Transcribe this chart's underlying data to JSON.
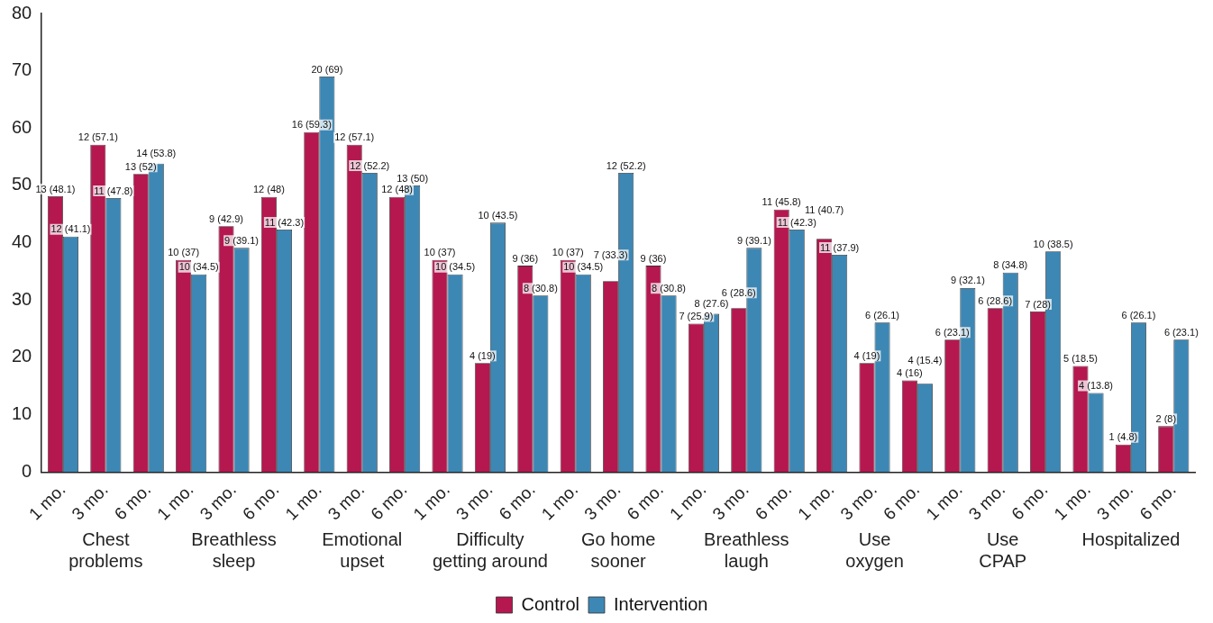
{
  "chart_data": {
    "type": "bar",
    "categories": [
      "1 mo.",
      "3 mo.",
      "6 mo.",
      "1 mo.",
      "3 mo.",
      "6 mo.",
      "1 mo.",
      "3 mo.",
      "6 mo.",
      "1 mo.",
      "3 mo.",
      "6 mo.",
      "1 mo.",
      "3 mo.",
      "6 mo.",
      "1 mo.",
      "3 mo.",
      "6 mo.",
      "1 mo.",
      "3 mo.",
      "6 mo.",
      "1 mo.",
      "3 mo.",
      "6 mo.",
      "1 mo.",
      "3 mo.",
      "6 mo."
    ],
    "series": [
      {
        "name": "Control",
        "color": "#b5174f",
        "values": [
          48.1,
          57.1,
          52,
          37,
          42.9,
          48,
          59.3,
          57.1,
          48,
          37,
          19,
          36,
          37,
          33.3,
          36,
          25.9,
          28.6,
          45.8,
          40.7,
          19,
          16,
          23.1,
          28.6,
          28,
          18.5,
          4.8,
          8
        ],
        "value_labels": [
          "13 (48.1)",
          "12 (57.1)",
          "13 (52)",
          "10 (37)",
          "9 (42.9)",
          "12 (48)",
          "16 (59.3)",
          "12 (57.1)",
          "12 (48)",
          "10 (37)",
          "4 (19)",
          "9 (36)",
          "10 (37)",
          "7 (33.3)",
          "9 (36)",
          "7 (25.9)",
          "6 (28.6)",
          "11 (45.8)",
          "11 (40.7)",
          "4 (19)",
          "4 (16)",
          "6 (23.1)",
          "6 (28.6)",
          "7 (28)",
          "5 (18.5)",
          "1 (4.8)",
          "2 (8)"
        ]
      },
      {
        "name": "Intervention",
        "color": "#3d87b5",
        "values": [
          41.1,
          47.8,
          53.8,
          34.5,
          39.1,
          42.3,
          69,
          52.2,
          50,
          34.5,
          43.5,
          30.8,
          34.5,
          52.2,
          30.8,
          27.6,
          39.1,
          42.3,
          37.9,
          26.1,
          15.4,
          32.1,
          34.8,
          38.5,
          13.8,
          26.1,
          23.1
        ],
        "value_labels": [
          "12 (41.1)",
          "11 (47.8)",
          "14 (53.8)",
          "10 (34.5)",
          "9 (39.1)",
          "11 (42.3)",
          "20 (69)",
          "12 (52.2)",
          "13 (50)",
          "10 (34.5)",
          "10 (43.5)",
          "8 (30.8)",
          "10 (34.5)",
          "12 (52.2)",
          "8 (30.8)",
          "8 (27.6)",
          "9 (39.1)",
          "11 (42.3)",
          "11 (37.9)",
          "6 (26.1)",
          "4 (15.4)",
          "9 (32.1)",
          "8 (34.8)",
          "10 (38.5)",
          "4 (13.8)",
          "6 (26.1)",
          "6 (23.1)"
        ]
      }
    ],
    "annotations": [
      "Chest\nproblems",
      "Breathless\nsleep",
      "Emotional\nupset",
      "Difficulty\ngetting around",
      "Go home\nsooner",
      "Breathless\nlaugh",
      "Use\noxygen",
      "Use\nCPAP",
      "Hospitalized"
    ],
    "ylim": [
      0,
      80
    ],
    "yticks": [
      0,
      10,
      20,
      30,
      40,
      50,
      60,
      70,
      80
    ],
    "grid": false,
    "legend": "bottom"
  }
}
